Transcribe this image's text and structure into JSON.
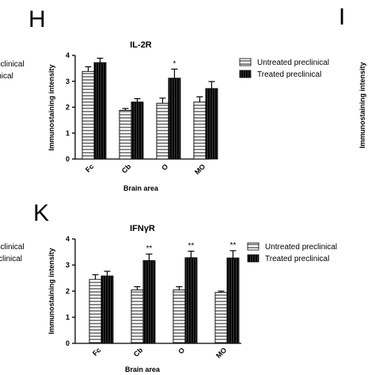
{
  "panels": {
    "top_left_letter": "H",
    "top_right_letter": "I",
    "bottom_left_letter": "K"
  },
  "cut_left_text": {
    "top": [
      "eclinical",
      "inical"
    ],
    "bottom": [
      "eclinical",
      "clinical"
    ]
  },
  "cut_right_ylabel": "Immunostaining intensity",
  "colors": {
    "untreated_fill": "#ffffff",
    "treated_fill": "#000000",
    "stripe": "#000000"
  },
  "chart_data": [
    {
      "type": "bar",
      "title": "IL-2R",
      "xlabel": "Brain area",
      "ylabel": "Immunostaining intensity",
      "ylim": [
        0,
        4
      ],
      "yticks": [
        "0",
        "1",
        "2",
        "3",
        "4"
      ],
      "categories": [
        "Fc",
        "Cb",
        "O",
        "MO"
      ],
      "series": [
        {
          "name": "Untreated preclinical",
          "pattern": "horizontal-stripes",
          "values": [
            3.38,
            1.88,
            2.15,
            2.2
          ],
          "errors": [
            0.18,
            0.07,
            0.2,
            0.2
          ]
        },
        {
          "name": "Treated preclinical",
          "pattern": "dark-vertical-stripes",
          "values": [
            3.72,
            2.2,
            3.12,
            2.72
          ],
          "errors": [
            0.17,
            0.13,
            0.35,
            0.27
          ]
        }
      ],
      "significance": [
        {
          "category": "O",
          "series": "Treated preclinical",
          "label": "*"
        }
      ],
      "legend": {
        "placement": "right"
      }
    },
    {
      "type": "bar",
      "title": "IFNγR",
      "xlabel": "Brain area",
      "ylabel": "Immunostaining intensity",
      "ylim": [
        0,
        4
      ],
      "yticks": [
        "0",
        "1",
        "2",
        "3",
        "4"
      ],
      "categories": [
        "Fc",
        "Cb",
        "O",
        "MO"
      ],
      "series": [
        {
          "name": "Untreated preclinical",
          "pattern": "horizontal-stripes",
          "values": [
            2.45,
            2.05,
            2.05,
            1.95
          ],
          "errors": [
            0.18,
            0.12,
            0.12,
            0.05
          ]
        },
        {
          "name": "Treated preclinical",
          "pattern": "dark-vertical-stripes",
          "values": [
            2.58,
            3.17,
            3.28,
            3.27
          ],
          "errors": [
            0.18,
            0.25,
            0.25,
            0.28
          ]
        }
      ],
      "significance": [
        {
          "category": "Cb",
          "series": "Treated preclinical",
          "label": "**"
        },
        {
          "category": "O",
          "series": "Treated preclinical",
          "label": "**"
        },
        {
          "category": "MO",
          "series": "Treated preclinical",
          "label": "**"
        }
      ],
      "legend": {
        "placement": "right"
      }
    }
  ]
}
